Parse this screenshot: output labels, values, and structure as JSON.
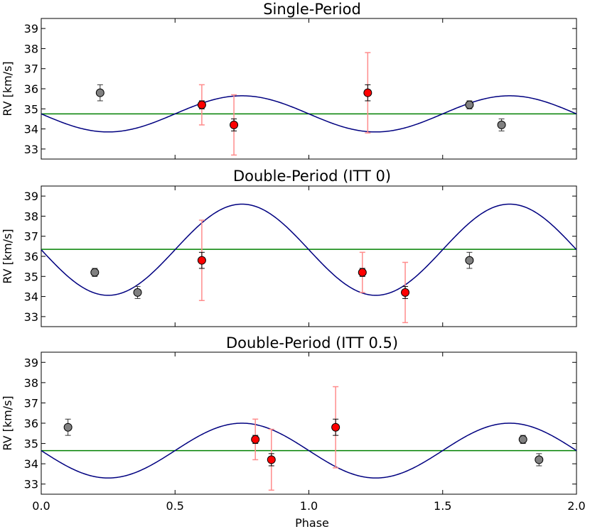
{
  "figure": {
    "xlabel": "Phase",
    "x_ticks": [
      "0.0",
      "0.5",
      "1.0",
      "1.5",
      "2.0"
    ]
  },
  "colors": {
    "model_curve": "#000080",
    "mean_line": "#008000",
    "red_point": "#ff0000",
    "gray_point": "#808080",
    "red_errbar": "#ff8c8c",
    "black_errbar": "#000000"
  },
  "chart_data": [
    {
      "type": "scatter",
      "title": "Single-Period",
      "xlabel": "",
      "ylabel": "RV [km/s]",
      "xlim": [
        0.0,
        2.0
      ],
      "ylim": [
        32.5,
        39.5
      ],
      "y_ticks": [
        "33",
        "34",
        "35",
        "36",
        "37",
        "38",
        "39"
      ],
      "mean_rv": 34.75,
      "sine": {
        "offset": 34.75,
        "amplitude": 0.9,
        "min_phase": 0.25
      },
      "red_points": [
        {
          "x": 0.6,
          "y": 35.2,
          "err": 0.2,
          "jitter_err": 1.0
        },
        {
          "x": 0.72,
          "y": 34.2,
          "err": 0.3,
          "jitter_err": 1.5
        },
        {
          "x": 1.22,
          "y": 35.8,
          "err": 0.4,
          "jitter_err": 2.0
        }
      ],
      "gray_points": [
        {
          "x": 0.22,
          "y": 35.8,
          "err": 0.4
        },
        {
          "x": 1.6,
          "y": 35.2,
          "err": 0.2
        },
        {
          "x": 1.72,
          "y": 34.2,
          "err": 0.3
        }
      ]
    },
    {
      "type": "scatter",
      "title": "Double-Period (ITT 0)",
      "xlabel": "",
      "ylabel": "RV [km/s]",
      "xlim": [
        0.0,
        2.0
      ],
      "ylim": [
        32.5,
        39.5
      ],
      "y_ticks": [
        "33",
        "34",
        "35",
        "36",
        "37",
        "38",
        "39"
      ],
      "mean_rv": 36.35,
      "sine": {
        "offset": 36.33,
        "amplitude": 2.27,
        "min_phase": 0.25
      },
      "red_points": [
        {
          "x": 0.6,
          "y": 35.8,
          "err": 0.4,
          "jitter_err": 2.0
        },
        {
          "x": 1.2,
          "y": 35.2,
          "err": 0.2,
          "jitter_err": 1.0
        },
        {
          "x": 1.36,
          "y": 34.2,
          "err": 0.3,
          "jitter_err": 1.5
        }
      ],
      "gray_points": [
        {
          "x": 0.2,
          "y": 35.2,
          "err": 0.2
        },
        {
          "x": 0.36,
          "y": 34.2,
          "err": 0.3
        },
        {
          "x": 1.6,
          "y": 35.8,
          "err": 0.4
        }
      ]
    },
    {
      "type": "scatter",
      "title": "Double-Period (ITT 0.5)",
      "xlabel": "Phase",
      "ylabel": "RV [km/s]",
      "xlim": [
        0.0,
        2.0
      ],
      "ylim": [
        32.5,
        39.5
      ],
      "y_ticks": [
        "33",
        "34",
        "35",
        "36",
        "37",
        "38",
        "39"
      ],
      "mean_rv": 34.65,
      "sine": {
        "offset": 34.65,
        "amplitude": 1.35,
        "min_phase": 0.25
      },
      "red_points": [
        {
          "x": 0.8,
          "y": 35.2,
          "err": 0.2,
          "jitter_err": 1.0
        },
        {
          "x": 0.86,
          "y": 34.2,
          "err": 0.3,
          "jitter_err": 1.5
        },
        {
          "x": 1.1,
          "y": 35.8,
          "err": 0.4,
          "jitter_err": 2.0
        }
      ],
      "gray_points": [
        {
          "x": 0.1,
          "y": 35.8,
          "err": 0.4
        },
        {
          "x": 1.8,
          "y": 35.2,
          "err": 0.2
        },
        {
          "x": 1.86,
          "y": 34.2,
          "err": 0.3
        }
      ]
    }
  ]
}
